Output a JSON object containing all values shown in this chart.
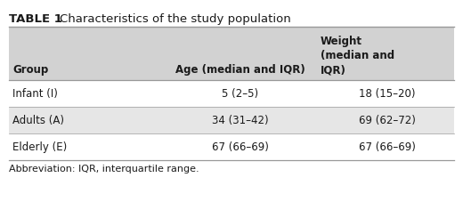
{
  "title_bold": "TABLE 1",
  "title_normal": "Characteristics of the study population",
  "headers": [
    "Group",
    "Age (median and IQR)",
    "Weight\n(median and\nIQR)"
  ],
  "rows": [
    [
      "Infant (I)",
      "5 (2–5)",
      "18 (15–20)"
    ],
    [
      "Adults (A)",
      "34 (31–42)",
      "69 (62–72)"
    ],
    [
      "Elderly (E)",
      "67 (66–69)",
      "67 (66–69)"
    ]
  ],
  "abbreviation": "Abbreviation: IQR, interquartile range.",
  "header_bg": "#d2d2d2",
  "row_alt_bg": "#e6e6e6",
  "row_white_bg": "#ffffff",
  "border_color": "#999999",
  "text_color": "#1a1a1a",
  "title_fontsize": 9.5,
  "header_fontsize": 8.5,
  "cell_fontsize": 8.5,
  "abbr_fontsize": 8.0,
  "fig_bg": "#ffffff"
}
